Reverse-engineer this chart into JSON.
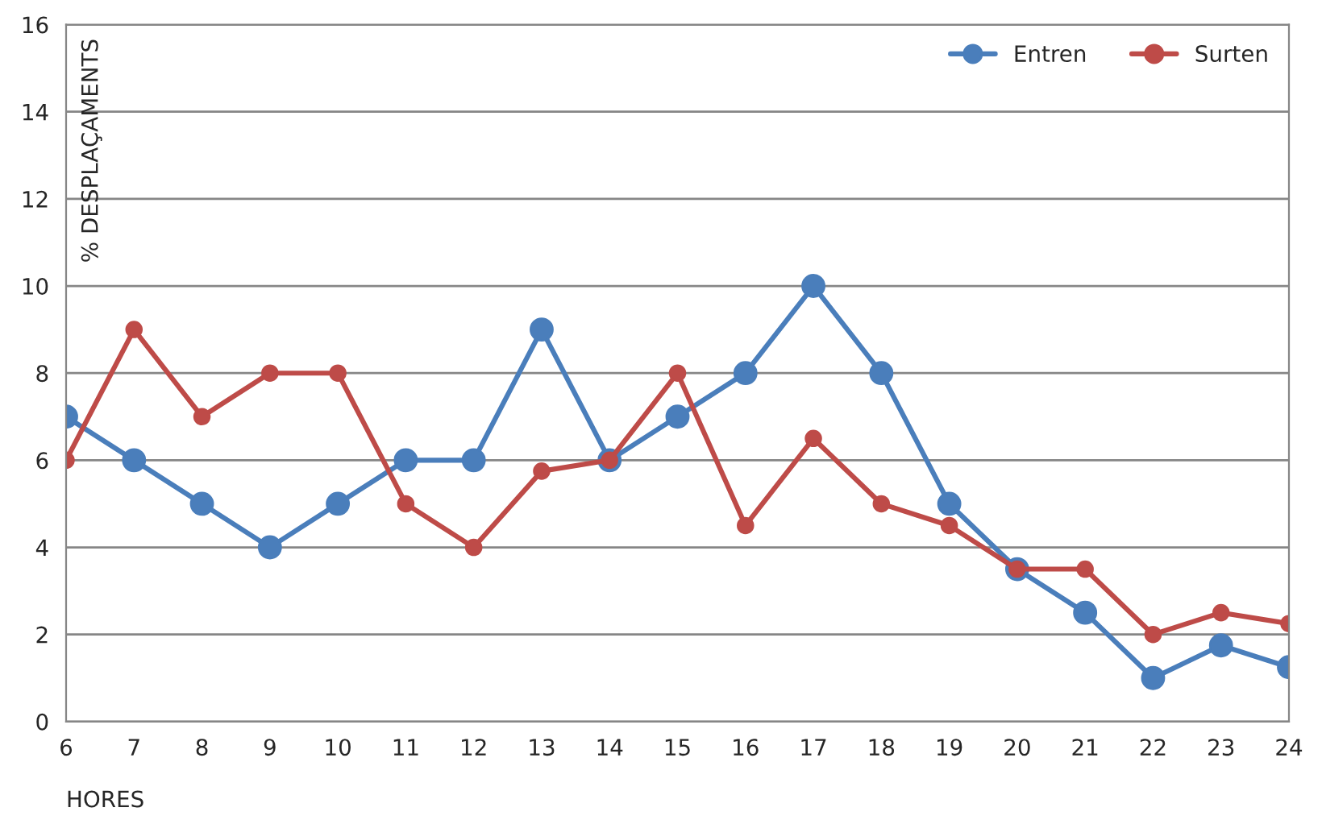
{
  "chart_data": {
    "type": "line",
    "xlabel": "HORES",
    "ylabel": "% DESPLAÇAMENTS",
    "x": [
      6,
      7,
      8,
      9,
      10,
      11,
      12,
      13,
      14,
      15,
      16,
      17,
      18,
      19,
      20,
      21,
      22,
      23,
      24
    ],
    "xlim": [
      6,
      24
    ],
    "xticks": [
      6,
      7,
      8,
      9,
      10,
      11,
      12,
      13,
      14,
      15,
      16,
      17,
      18,
      19,
      20,
      21,
      22,
      23,
      24
    ],
    "ylim": [
      0,
      16
    ],
    "yticks": [
      0,
      2,
      4,
      6,
      8,
      10,
      12,
      14,
      16
    ],
    "grid": "y",
    "legend": "top right",
    "marker": "circle",
    "line_style": "solid",
    "series": [
      {
        "name": "Entren",
        "color": "#4a7ebb",
        "values": [
          7,
          6,
          5,
          4,
          5,
          6,
          6,
          9,
          6,
          7,
          8,
          10,
          8,
          5,
          3.5,
          2.5,
          1,
          1.75,
          1.25
        ]
      },
      {
        "name": "Surten",
        "color": "#be4b48",
        "values": [
          6,
          9,
          7,
          8,
          8,
          5,
          4,
          5.75,
          6,
          8,
          4.5,
          6.5,
          5,
          4.5,
          3.5,
          3.5,
          2,
          2.5,
          2.25
        ]
      }
    ]
  }
}
